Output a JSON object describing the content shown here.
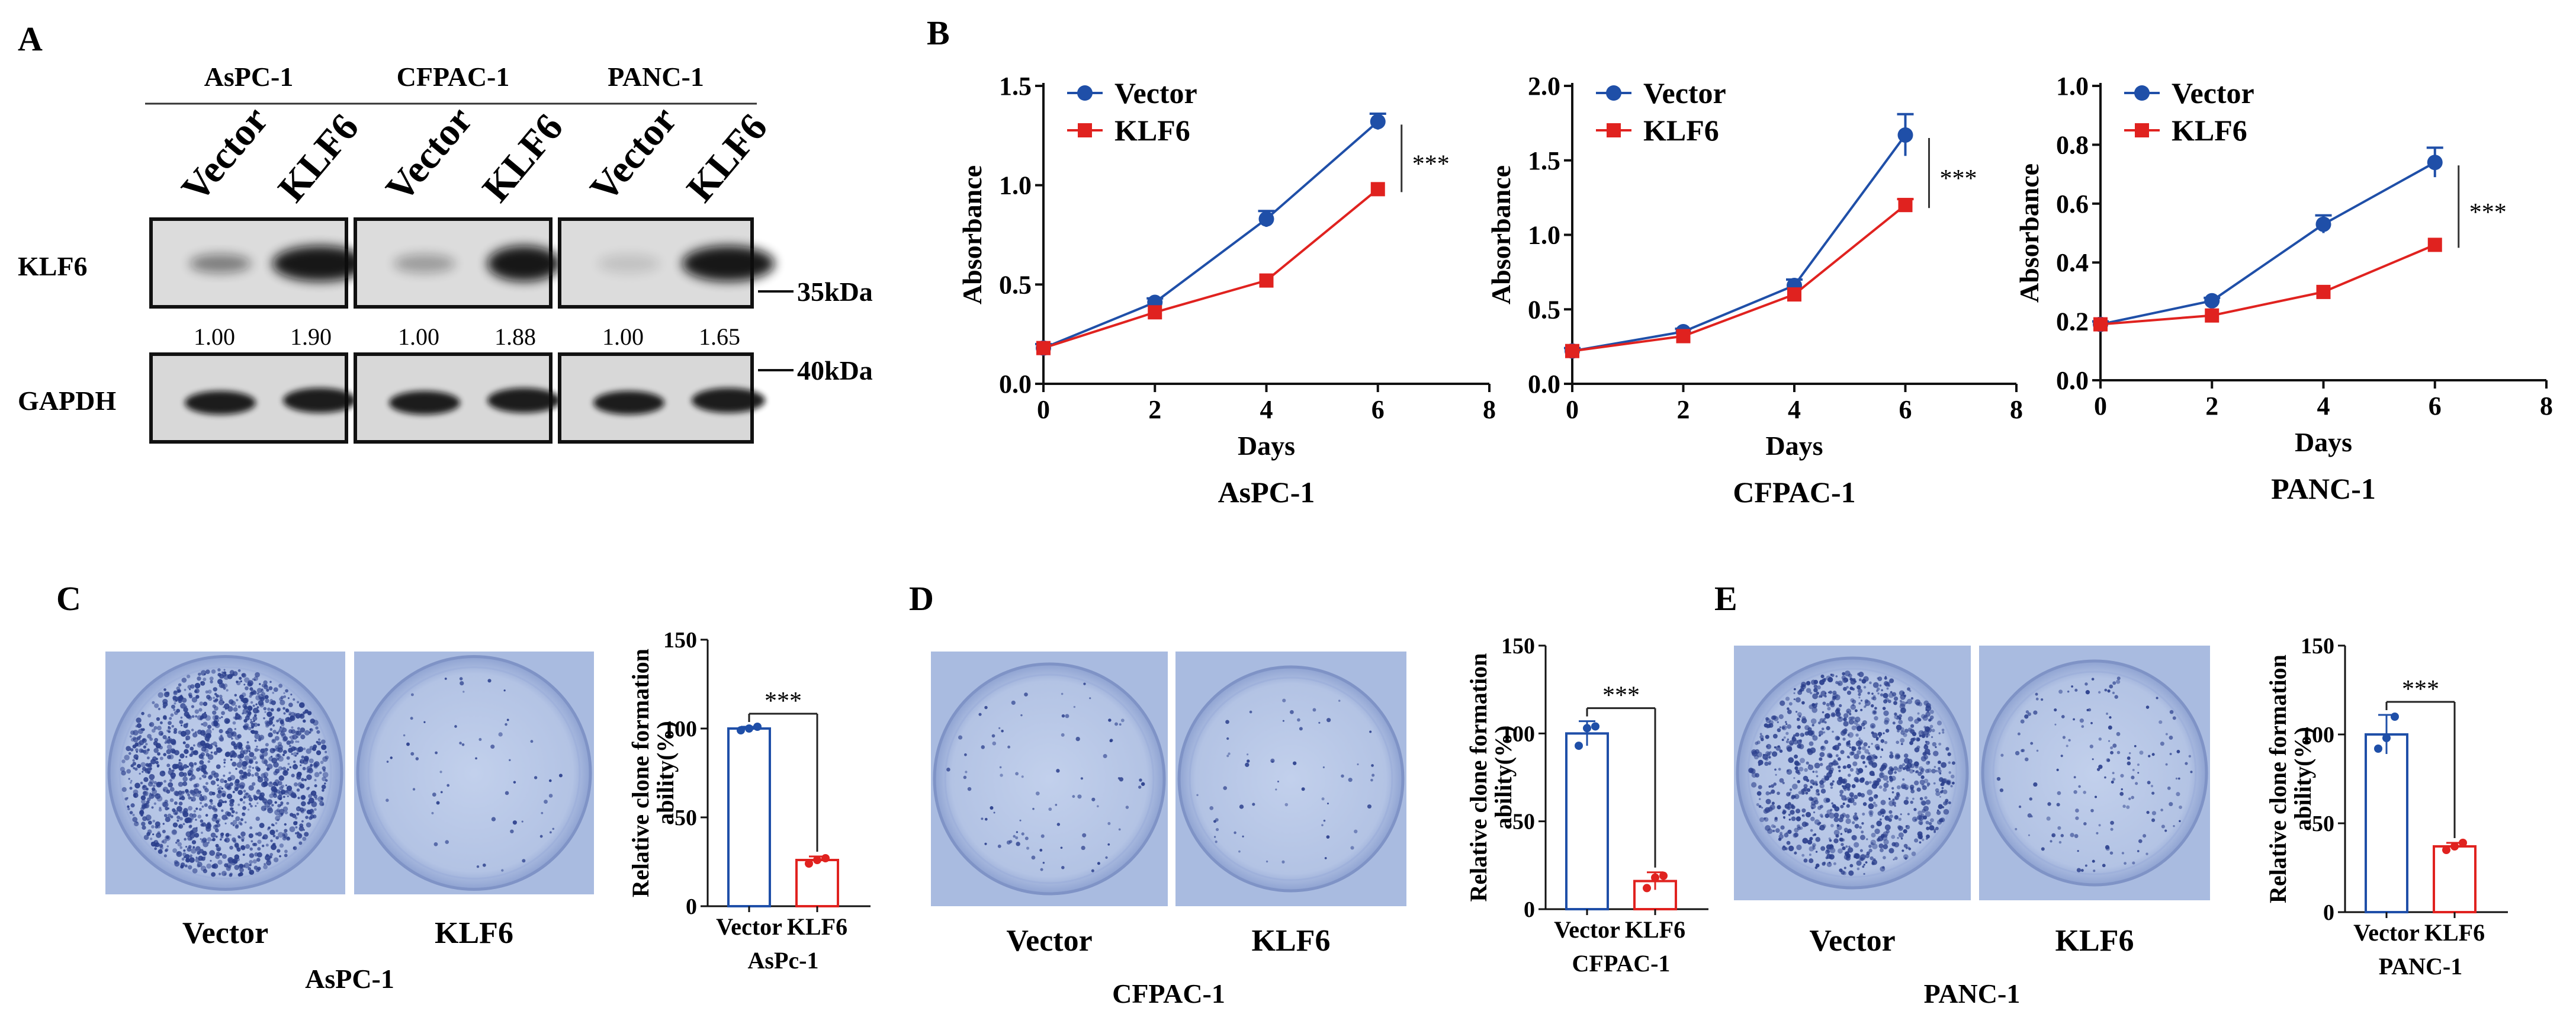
{
  "panel_labels": {
    "a": "A",
    "b": "B",
    "c": "C",
    "d": "D",
    "e": "E"
  },
  "colors": {
    "vector": "#1f4fa8",
    "klf6": "#e0221f",
    "dish_bg": "#b7c6e5",
    "colony": "#2b3f8c",
    "blot_bg": "#dcdcdc",
    "band": "#111111"
  },
  "western": {
    "cell_lines": [
      {
        "name": "AsPC-1",
        "lanes": [
          "Vector",
          "KLF6"
        ],
        "ratios": [
          "1.00",
          "1.90"
        ]
      },
      {
        "name": "CFPAC-1",
        "lanes": [
          "Vector",
          "KLF6"
        ],
        "ratios": [
          "1.00",
          "1.88"
        ]
      },
      {
        "name": "PANC-1",
        "lanes": [
          "Vector",
          "KLF6"
        ],
        "ratios": [
          "1.00",
          "1.65"
        ]
      }
    ],
    "row_labels": {
      "klf6": "KLF6",
      "gapdh": "GAPDH"
    },
    "markers": {
      "klf6": "35kDa",
      "gapdh": "40kDa"
    }
  },
  "chart_data": [
    {
      "type": "line",
      "caption": "AsPC-1",
      "xlabel": "Days",
      "ylabel": "Absorbance",
      "xlim": [
        0,
        8
      ],
      "ylim": [
        0,
        1.5
      ],
      "xticks": [
        "0",
        "2",
        "4",
        "6",
        "8"
      ],
      "yticks": [
        "0.0",
        "0.5",
        "1.0",
        "1.5"
      ],
      "yticks_values": [
        0,
        0.5,
        1.0,
        1.5
      ],
      "series": [
        {
          "name": "Vector",
          "x": [
            0,
            2,
            4,
            6
          ],
          "y": [
            0.18,
            0.41,
            0.83,
            1.32
          ],
          "err": [
            0.02,
            0.02,
            0.04,
            0.04
          ]
        },
        {
          "name": "KLF6",
          "x": [
            0,
            2,
            4,
            6
          ],
          "y": [
            0.18,
            0.36,
            0.52,
            0.98
          ],
          "err": [
            0,
            0,
            0,
            0
          ]
        }
      ],
      "significance": "***"
    },
    {
      "type": "line",
      "caption": "CFPAC-1",
      "xlabel": "Days",
      "ylabel": "Absorbance",
      "xlim": [
        0,
        8
      ],
      "ylim": [
        0,
        2.0
      ],
      "xticks": [
        "0",
        "2",
        "4",
        "6",
        "8"
      ],
      "yticks": [
        "0.0",
        "0.5",
        "1.0",
        "1.5",
        "2.0"
      ],
      "yticks_values": [
        0,
        0.5,
        1.0,
        1.5,
        2.0
      ],
      "series": [
        {
          "name": "Vector",
          "x": [
            0,
            2,
            4,
            6
          ],
          "y": [
            0.22,
            0.35,
            0.66,
            1.67
          ],
          "err": [
            0.02,
            0.02,
            0.04,
            0.14
          ]
        },
        {
          "name": "KLF6",
          "x": [
            0,
            2,
            4,
            6
          ],
          "y": [
            0.22,
            0.32,
            0.6,
            1.2
          ],
          "err": [
            0,
            0,
            0,
            0.04
          ]
        }
      ],
      "significance": "***"
    },
    {
      "type": "line",
      "caption": "PANC-1",
      "xlabel": "Days",
      "ylabel": "Absorbance",
      "xlim": [
        0,
        8
      ],
      "ylim": [
        0,
        1.0
      ],
      "xticks": [
        "0",
        "2",
        "4",
        "6",
        "8"
      ],
      "yticks": [
        "0.0",
        "0.2",
        "0.4",
        "0.6",
        "0.8",
        "1.0"
      ],
      "yticks_values": [
        0,
        0.2,
        0.4,
        0.6,
        0.8,
        1.0
      ],
      "series": [
        {
          "name": "Vector",
          "x": [
            0,
            2,
            4,
            6
          ],
          "y": [
            0.19,
            0.27,
            0.53,
            0.74
          ],
          "err": [
            0.01,
            0.01,
            0.03,
            0.05
          ]
        },
        {
          "name": "KLF6",
          "x": [
            0,
            2,
            4,
            6
          ],
          "y": [
            0.19,
            0.22,
            0.3,
            0.46
          ],
          "err": [
            0,
            0,
            0,
            0
          ]
        }
      ],
      "significance": "***"
    },
    {
      "type": "bar",
      "caption": "AsPc-1",
      "ylabel": "Relative clone formation ability(%)",
      "ylim": [
        0,
        150
      ],
      "yticks": [
        "0",
        "50",
        "100",
        "150"
      ],
      "yticks_values": [
        0,
        50,
        100,
        150
      ],
      "categories": [
        "Vector",
        "KLF6"
      ],
      "values": [
        100,
        26
      ],
      "errors": [
        1,
        2
      ],
      "points": [
        [
          99,
          100,
          101
        ],
        [
          24,
          26,
          27
        ]
      ],
      "significance": "***"
    },
    {
      "type": "bar",
      "caption": "CFPAC-1",
      "ylabel": "Relative clone formation ability(%)",
      "ylim": [
        0,
        150
      ],
      "yticks": [
        "0",
        "50",
        "100",
        "150"
      ],
      "yticks_values": [
        0,
        50,
        100,
        150
      ],
      "categories": [
        "Vector",
        "KLF6"
      ],
      "values": [
        100,
        16
      ],
      "errors": [
        7,
        5
      ],
      "points": [
        [
          93,
          103,
          104
        ],
        [
          12,
          18,
          19
        ]
      ],
      "significance": "***"
    },
    {
      "type": "bar",
      "caption": "PANC-1",
      "ylabel": "Relative clone formation ability(%)",
      "ylim": [
        0,
        150
      ],
      "yticks": [
        "0",
        "50",
        "100",
        "150"
      ],
      "yticks_values": [
        0,
        50,
        100,
        150
      ],
      "categories": [
        "Vector",
        "KLF6"
      ],
      "values": [
        100,
        37
      ],
      "errors": [
        11,
        2
      ],
      "points": [
        [
          92,
          98,
          110
        ],
        [
          35,
          37,
          39
        ]
      ],
      "significance": "***"
    }
  ],
  "dishes": [
    {
      "panel": "C",
      "caption": "AsPC-1",
      "labels": [
        "Vector",
        "KLF6"
      ],
      "colony_density": [
        1.0,
        0.04
      ]
    },
    {
      "panel": "D",
      "caption": "CFPAC-1",
      "labels": [
        "Vector",
        "KLF6"
      ],
      "colony_density": [
        0.06,
        0.04
      ]
    },
    {
      "panel": "E",
      "caption": "PANC-1",
      "labels": [
        "Vector",
        "KLF6"
      ],
      "colony_density": [
        0.75,
        0.12
      ]
    }
  ]
}
